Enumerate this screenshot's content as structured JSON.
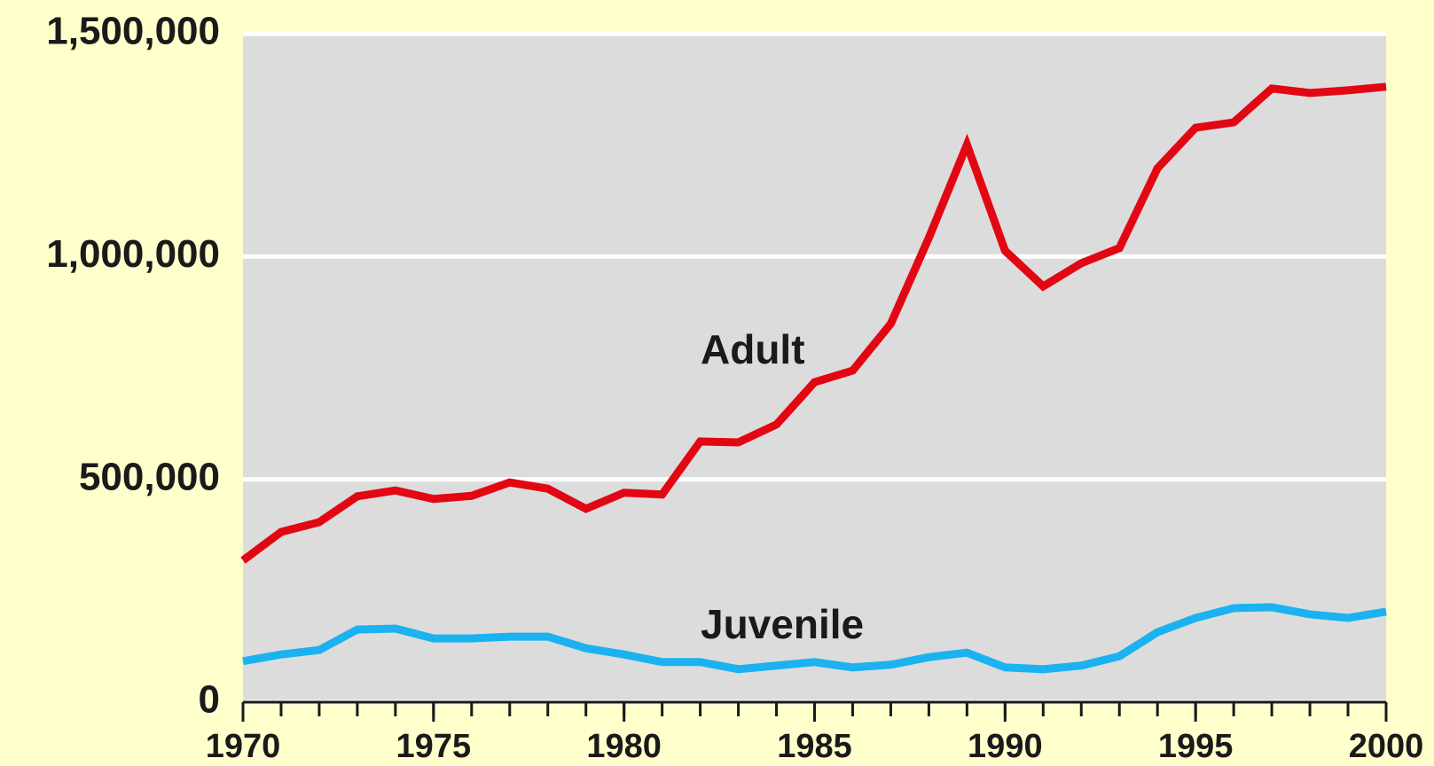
{
  "chart_data": {
    "type": "line",
    "x": [
      1970,
      1971,
      1972,
      1973,
      1974,
      1975,
      1976,
      1977,
      1978,
      1979,
      1980,
      1981,
      1982,
      1983,
      1984,
      1985,
      1986,
      1987,
      1988,
      1989,
      1990,
      1991,
      1992,
      1993,
      1994,
      1995,
      1996,
      1997,
      1998,
      1999,
      2000
    ],
    "series": [
      {
        "name": "Adult",
        "color": "#e30613",
        "values": [
          318000,
          382000,
          404000,
          462000,
          475000,
          456000,
          463000,
          493000,
          479000,
          434000,
          470000,
          466000,
          585000,
          583000,
          623000,
          718000,
          744000,
          849000,
          1042000,
          1251000,
          1013000,
          933000,
          985000,
          1019000,
          1198000,
          1289000,
          1301000,
          1377000,
          1367000,
          1373000,
          1381000
        ]
      },
      {
        "name": "Juvenile",
        "color": "#1ab2f0",
        "values": [
          92000,
          107000,
          117000,
          163000,
          165000,
          143000,
          143000,
          147000,
          147000,
          121000,
          107000,
          90000,
          90000,
          74000,
          82000,
          90000,
          78000,
          84000,
          101000,
          111000,
          78000,
          74000,
          82000,
          103000,
          157000,
          189000,
          211000,
          213000,
          197000,
          189000,
          203000
        ]
      }
    ],
    "xlim": [
      1970,
      2000
    ],
    "xticks": [
      1970,
      1975,
      1980,
      1985,
      1990,
      1995,
      2000
    ],
    "ylim": [
      0,
      1500000
    ],
    "yticks": [
      0,
      {
        "value": 500000,
        "label": "500,000"
      },
      {
        "value": 1000000,
        "label": "1,000,000"
      },
      {
        "value": 1500000,
        "label": "1,500,000"
      }
    ],
    "grid": true
  }
}
